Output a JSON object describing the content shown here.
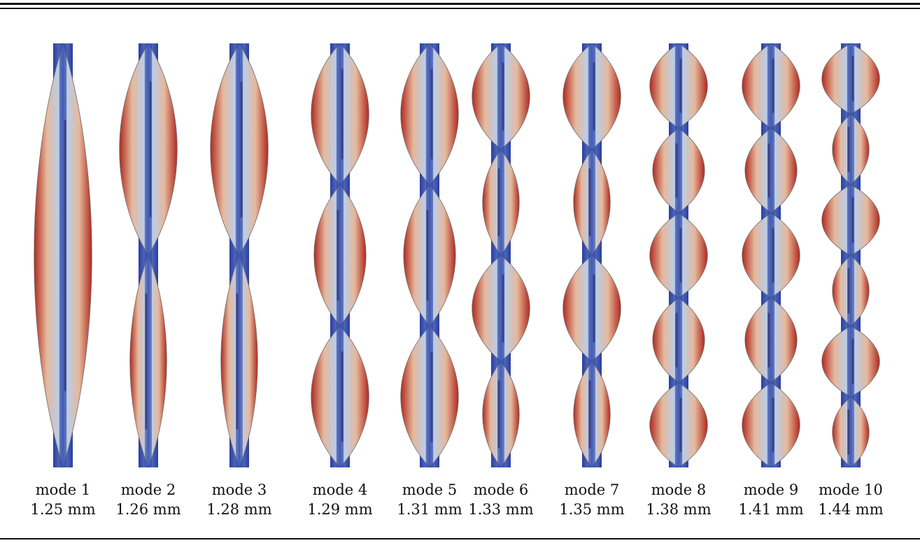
{
  "modes": [
    {
      "label": "mode 1",
      "value": "1.25 mm",
      "lobes": 1
    },
    {
      "label": "mode 2",
      "value": "1.26 mm",
      "lobes": 2
    },
    {
      "label": "mode 3",
      "value": "1.28 mm",
      "lobes": 2
    },
    {
      "label": "mode 4",
      "value": "1.29 mm",
      "lobes": 3
    },
    {
      "label": "mode 5",
      "value": "1.31 mm",
      "lobes": 3
    },
    {
      "label": "mode 6",
      "value": "1.33 mm",
      "lobes": 4
    },
    {
      "label": "mode 7",
      "value": "1.35 mm",
      "lobes": 4
    },
    {
      "label": "mode 8",
      "value": "1.38 mm",
      "lobes": 5
    },
    {
      "label": "mode 9",
      "value": "1.41 mm",
      "lobes": 5
    },
    {
      "label": "mode 10",
      "value": "1.44 mm",
      "lobes": 6
    }
  ],
  "colors": {
    "strip": "#2c3e9e",
    "strip_light": "#5f82d0",
    "lobe_edge": "#b0291f",
    "lobe_mid": "#e6b89b",
    "lobe_center": "#bccde6",
    "core": "#3a2a3a",
    "rule": "#111111"
  }
}
